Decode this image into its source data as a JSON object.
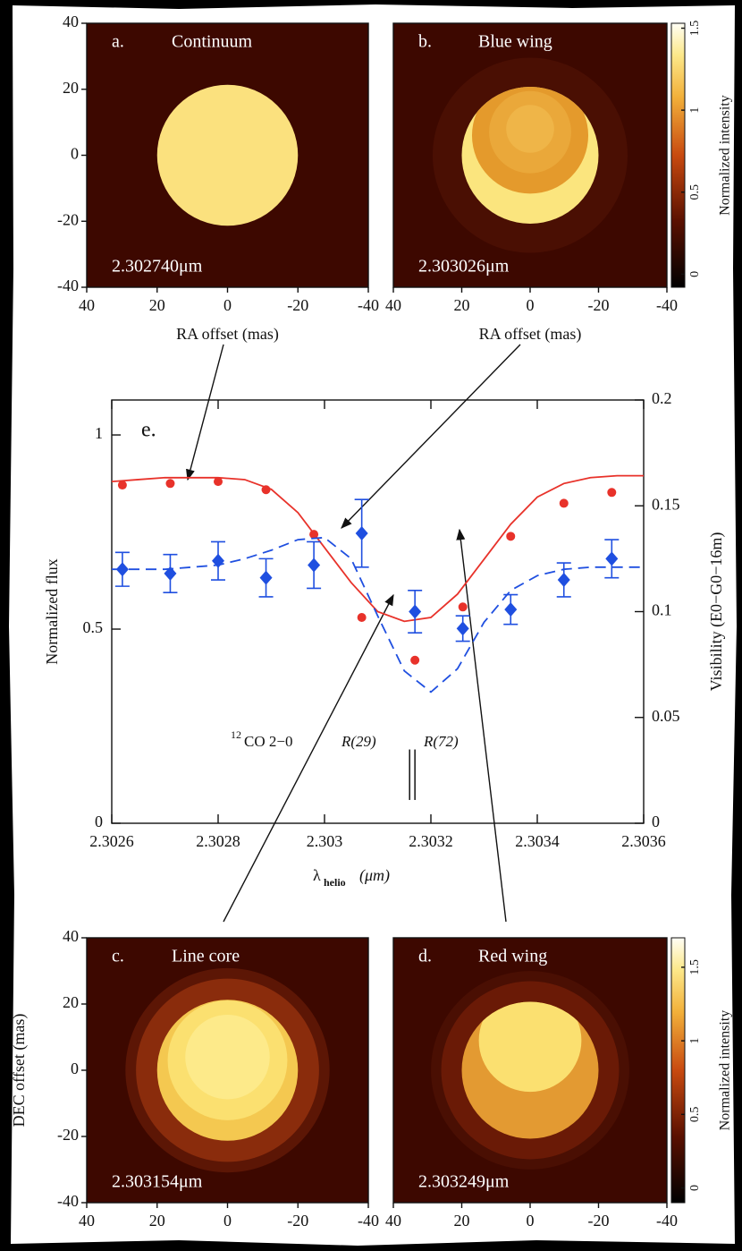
{
  "chart_data": [
    {
      "type": "image",
      "label": "a.",
      "title": "Continuum",
      "wavelength": "2.302740μm",
      "x_label": "RA offset (mas)",
      "xlim": [
        40,
        -40
      ],
      "ylim": [
        -40,
        40
      ],
      "xticks": [
        40,
        20,
        0,
        -20,
        -40
      ],
      "yticks": [
        40,
        20,
        0,
        -20,
        -40
      ]
    },
    {
      "type": "image",
      "label": "b.",
      "title": "Blue wing",
      "wavelength": "2.303026μm",
      "x_label": "RA offset (mas)",
      "xlim": [
        40,
        -40
      ],
      "ylim": [
        -40,
        40
      ],
      "xticks": [
        40,
        20,
        0,
        -20,
        -40
      ],
      "colorbar_label": "Normalized intensity",
      "clim": [
        -0.08,
        1.53
      ],
      "cticks": [
        0,
        0.5,
        1,
        1.5
      ]
    },
    {
      "type": "spectrum",
      "label": "e.",
      "x_label": "λ",
      "x_label_subscript": "helio",
      "x_label_unit": "(μm)",
      "y_label": "Normalized flux",
      "y2_label": "Visibility (E0−G0−16m)",
      "xlim": [
        2.3026,
        2.3036
      ],
      "xticks": [
        2.3026,
        2.3028,
        2.303,
        2.3032,
        2.3034,
        2.3036
      ],
      "ylim": [
        0,
        1.09
      ],
      "yticks": [
        0,
        0.5,
        1
      ],
      "y2lim": [
        0,
        0.2
      ],
      "y2ticks": [
        0,
        0.05,
        0.1,
        0.15,
        0.2
      ],
      "series": [
        {
          "color": "#e8322a",
          "marker": "circle",
          "x": [
            2.30262,
            2.30271,
            2.3028,
            2.30289,
            2.30298,
            2.30307,
            2.30317,
            2.30326,
            2.30335,
            2.30345,
            2.30354
          ],
          "values": [
            0.871,
            0.875,
            0.88,
            0.859,
            0.744,
            0.53,
            0.42,
            0.557,
            0.739,
            0.824,
            0.852
          ]
        },
        {
          "color": "#e8322a",
          "style": "solid",
          "x": [
            2.3026,
            2.30265,
            2.3027,
            2.30275,
            2.3028,
            2.30285,
            2.3029,
            2.30295,
            2.303,
            2.30305,
            2.3031,
            2.30315,
            2.3032,
            2.30325,
            2.3033,
            2.30335,
            2.3034,
            2.30345,
            2.3035,
            2.30355,
            2.3036
          ],
          "values": [
            0.88,
            0.885,
            0.89,
            0.89,
            0.89,
            0.885,
            0.86,
            0.8,
            0.71,
            0.62,
            0.545,
            0.52,
            0.53,
            0.59,
            0.68,
            0.77,
            0.84,
            0.875,
            0.89,
            0.895,
            0.895
          ]
        },
        {
          "color": "#1f4fe0",
          "marker": "diamond",
          "axis": "y2",
          "x": [
            2.30262,
            2.30271,
            2.3028,
            2.30289,
            2.30298,
            2.30307,
            2.30317,
            2.30326,
            2.30335,
            2.30345,
            2.30354
          ],
          "values": [
            0.12,
            0.118,
            0.124,
            0.116,
            0.122,
            0.137,
            0.1,
            0.092,
            0.101,
            0.115,
            0.125
          ],
          "errors": [
            0.008,
            0.009,
            0.009,
            0.009,
            0.011,
            0.016,
            0.01,
            0.006,
            0.007,
            0.008,
            0.009
          ]
        },
        {
          "color": "#1f4fe0",
          "style": "dashed",
          "axis": "y2",
          "x": [
            2.3026,
            2.30265,
            2.3027,
            2.30275,
            2.3028,
            2.30285,
            2.3029,
            2.30295,
            2.303,
            2.30305,
            2.3031,
            2.30315,
            2.3032,
            2.30325,
            2.3033,
            2.30335,
            2.3034,
            2.30345,
            2.3035,
            2.30355,
            2.3036
          ],
          "values": [
            0.12,
            0.12,
            0.12,
            0.121,
            0.122,
            0.125,
            0.129,
            0.134,
            0.135,
            0.125,
            0.098,
            0.072,
            0.062,
            0.073,
            0.095,
            0.11,
            0.117,
            0.12,
            0.121,
            0.121,
            0.121
          ]
        }
      ],
      "line_markers": [
        {
          "x": 2.30316,
          "ymin": 0.06,
          "ymax": 0.19
        },
        {
          "x": 2.30317,
          "ymin": 0.06,
          "ymax": 0.19
        }
      ],
      "annotations": [
        "12",
        "CO 2−0",
        "R(29)",
        "R(72)"
      ]
    },
    {
      "type": "image",
      "label": "c.",
      "title": "Line core",
      "wavelength": "2.303154μm",
      "y_label": "DEC offset (mas)",
      "xlim": [
        40,
        -40
      ],
      "ylim": [
        -40,
        40
      ],
      "xticks": [
        40,
        20,
        0,
        -20,
        -40
      ],
      "yticks": [
        40,
        20,
        0,
        -20,
        -40
      ]
    },
    {
      "type": "image",
      "label": "d.",
      "title": "Red wing",
      "wavelength": "2.303249μm",
      "xlim": [
        40,
        -40
      ],
      "ylim": [
        -40,
        40
      ],
      "xticks": [
        40,
        20,
        0,
        -20,
        -40
      ],
      "colorbar_label": "Normalized intensity",
      "clim": [
        -0.1,
        1.7
      ],
      "cticks": [
        0,
        0.5,
        1,
        1.5
      ]
    }
  ]
}
